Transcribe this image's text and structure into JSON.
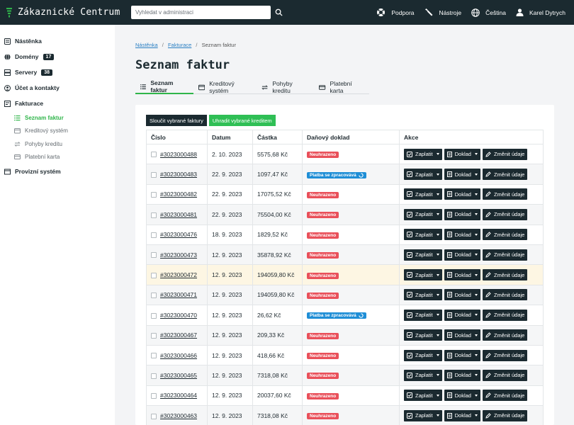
{
  "app": {
    "title": "Zákaznické Centrum",
    "accent": "#2fb54a",
    "topbar_color": "#1b2a30"
  },
  "search": {
    "placeholder": "Vyhledat v administraci"
  },
  "top_links": {
    "support": "Podpora",
    "tools": "Nástroje",
    "language": "Čeština",
    "user": "Karel Dytrych"
  },
  "sidebar": {
    "dashboard": "Nástěnka",
    "domains": "Domény",
    "domains_count": "17",
    "servers": "Servery",
    "servers_count": "38",
    "account": "Účet a kontakty",
    "billing": "Fakturace",
    "billing_sub": {
      "invoices": "Seznam faktur",
      "credit_system": "Kreditový systém",
      "credit_moves": "Pohyby kreditu",
      "payment_card": "Platební karta"
    },
    "operations": "Provizní systém"
  },
  "breadcrumb": {
    "home": "Nástěnka",
    "billing": "Fakturace",
    "current": "Seznam faktur"
  },
  "page": {
    "title": "Seznam faktur"
  },
  "tabs": {
    "invoices": "Seznam faktur",
    "credit_system": "Kreditový systém",
    "credit_moves": "Pohyby kreditu",
    "payment_card": "Platební karta"
  },
  "bulk": {
    "merge": "Sloučit vybrané faktury",
    "pay_credit": "Uhradit vybrané kreditem"
  },
  "table": {
    "headers": {
      "number": "Číslo",
      "date": "Datum",
      "amount": "Částka",
      "tax_doc": "Daňový doklad",
      "actions": "Akce"
    },
    "action_labels": {
      "pay": "Zaplatit",
      "doc": "Doklad",
      "change": "Změnit údaje"
    },
    "rows": [
      {
        "number": "#3023000488",
        "date": "2. 10. 2023",
        "amount": "5575,68 Kč",
        "status": "Neuhrazeno",
        "status_type": "red"
      },
      {
        "number": "#3023000483",
        "date": "22. 9. 2023",
        "amount": "1097,47 Kč",
        "status": "Platba se zpracovává",
        "status_type": "blue"
      },
      {
        "number": "#3023000482",
        "date": "22. 9. 2023",
        "amount": "17075,52 Kč",
        "status": "Neuhrazeno",
        "status_type": "red"
      },
      {
        "number": "#3023000481",
        "date": "22. 9. 2023",
        "amount": "75504,00 Kč",
        "status": "Neuhrazeno",
        "status_type": "red"
      },
      {
        "number": "#3023000476",
        "date": "18. 9. 2023",
        "amount": "1829,52 Kč",
        "status": "Neuhrazeno",
        "status_type": "red"
      },
      {
        "number": "#3023000473",
        "date": "12. 9. 2023",
        "amount": "35878,92 Kč",
        "status": "Neuhrazeno",
        "status_type": "red"
      },
      {
        "number": "#3023000472",
        "date": "12. 9. 2023",
        "amount": "194059,80 Kč",
        "status": "Neuhrazeno",
        "status_type": "red",
        "highlight": true
      },
      {
        "number": "#3023000471",
        "date": "12. 9. 2023",
        "amount": "194059,80 Kč",
        "status": "Neuhrazeno",
        "status_type": "red"
      },
      {
        "number": "#3023000470",
        "date": "12. 9. 2023",
        "amount": "26,62 Kč",
        "status": "Platba se zpracovává",
        "status_type": "blue"
      },
      {
        "number": "#3023000467",
        "date": "12. 9. 2023",
        "amount": "209,33 Kč",
        "status": "Neuhrazeno",
        "status_type": "red"
      },
      {
        "number": "#3023000466",
        "date": "12. 9. 2023",
        "amount": "418,66 Kč",
        "status": "Neuhrazeno",
        "status_type": "red"
      },
      {
        "number": "#3023000465",
        "date": "12. 9. 2023",
        "amount": "7318,08 Kč",
        "status": "Neuhrazeno",
        "status_type": "red"
      },
      {
        "number": "#3023000464",
        "date": "12. 9. 2023",
        "amount": "20037,60 Kč",
        "status": "Neuhrazeno",
        "status_type": "red"
      },
      {
        "number": "#3023000463",
        "date": "12. 9. 2023",
        "amount": "7318,08 Kč",
        "status": "Neuhrazeno",
        "status_type": "red"
      }
    ]
  }
}
